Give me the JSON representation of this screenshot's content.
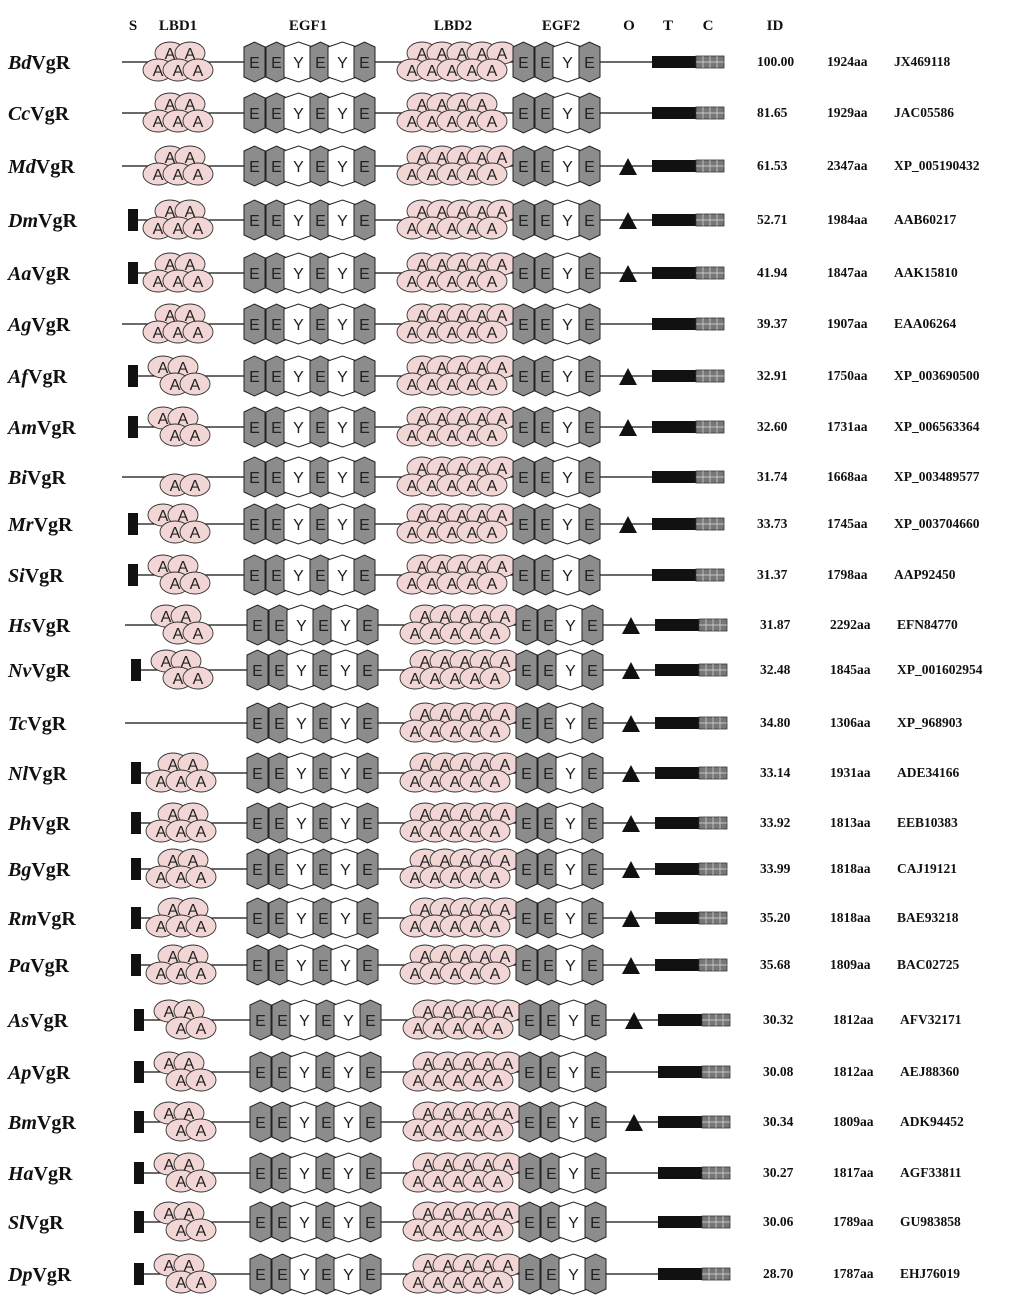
{
  "header": {
    "S": "S",
    "LBD1": "LBD1",
    "EGF1": "EGF1",
    "LBD2": "LBD2",
    "EGF2": "EGF2",
    "O": "O",
    "T": "T",
    "C": "C",
    "ID": "ID"
  },
  "colors": {
    "ldl_fill": "#f2d6d6",
    "egf_fill": "#8c8c8c",
    "y_fill": "#ffffff",
    "line": "#111111"
  },
  "rows": [
    {
      "abbr": "Bd",
      "suffix": "VgR",
      "id": "100.00",
      "len": "1924aa",
      "acc": "JX469118",
      "signal": false,
      "lbd1": [
        2,
        3
      ],
      "lbd2": [
        5,
        5
      ],
      "egf1": "EEYEYE",
      "egf2": "EEYE",
      "o_linked": false
    },
    {
      "abbr": "Cc",
      "suffix": "VgR",
      "id": "81.65",
      "len": "1929aa",
      "acc": "JAC05586",
      "signal": false,
      "lbd1": [
        2,
        3
      ],
      "lbd2": [
        4,
        5
      ],
      "egf1": "EEYEYE",
      "egf2": "EEYE",
      "o_linked": false
    },
    {
      "abbr": "Md",
      "suffix": "VgR",
      "id": "61.53",
      "len": "2347aa",
      "acc": "XP_005190432",
      "signal": false,
      "lbd1": [
        2,
        3
      ],
      "lbd2": [
        5,
        5
      ],
      "egf1": "EEYEYE",
      "egf2": "EEYE",
      "o_linked": true
    },
    {
      "abbr": "Dm",
      "suffix": "VgR",
      "id": "52.71",
      "len": "1984aa",
      "acc": "AAB60217",
      "signal": true,
      "lbd1": [
        2,
        3
      ],
      "lbd2": [
        5,
        5
      ],
      "egf1": "EEYEYE",
      "egf2": "EEYE",
      "o_linked": true
    },
    {
      "abbr": "Aa",
      "suffix": "VgR",
      "id": "41.94",
      "len": "1847aa",
      "acc": "AAK15810",
      "signal": true,
      "lbd1": [
        2,
        3
      ],
      "lbd2": [
        5,
        5
      ],
      "egf1": "EEYEYE",
      "egf2": "EEYE",
      "o_linked": true
    },
    {
      "abbr": "Ag",
      "suffix": "VgR",
      "id": "39.37",
      "len": "1907aa",
      "acc": "EAA06264",
      "signal": false,
      "lbd1": [
        2,
        3
      ],
      "lbd2": [
        5,
        5
      ],
      "egf1": "EEYEYE",
      "egf2": "EEYE",
      "o_linked": false
    },
    {
      "abbr": "Af",
      "suffix": "VgR",
      "id": "32.91",
      "len": "1750aa",
      "acc": "XP_003690500",
      "signal": true,
      "lbd1": [
        2,
        2
      ],
      "lbd2": [
        5,
        5
      ],
      "egf1": "EEYEYE",
      "egf2": "EEYE",
      "o_linked": true
    },
    {
      "abbr": "Am",
      "suffix": "VgR",
      "id": "32.60",
      "len": "1731aa",
      "acc": "XP_006563364",
      "signal": true,
      "lbd1": [
        2,
        2
      ],
      "lbd2": [
        5,
        5
      ],
      "egf1": "EEYEYE",
      "egf2": "EEYE",
      "o_linked": true
    },
    {
      "abbr": "Bi",
      "suffix": "VgR",
      "id": "31.74",
      "len": "1668aa",
      "acc": "XP_003489577",
      "signal": false,
      "lbd1": [
        0,
        2
      ],
      "lbd2": [
        5,
        5
      ],
      "egf1": "EEYEYE",
      "egf2": "EEYE",
      "o_linked": false
    },
    {
      "abbr": "Mr",
      "suffix": "VgR",
      "id": "33.73",
      "len": "1745aa",
      "acc": "XP_003704660",
      "signal": true,
      "lbd1": [
        2,
        2
      ],
      "lbd2": [
        5,
        5
      ],
      "egf1": "EEYEYE",
      "egf2": "EEYE",
      "o_linked": true
    },
    {
      "abbr": "Si",
      "suffix": "VgR",
      "id": "31.37",
      "len": "1798aa",
      "acc": "AAP92450",
      "signal": true,
      "lbd1": [
        2,
        2
      ],
      "lbd2": [
        5,
        5
      ],
      "egf1": "EEYEYE",
      "egf2": "EEYE",
      "o_linked": false
    },
    {
      "abbr": "Hs",
      "suffix": "VgR",
      "id": "31.87",
      "len": "2292aa",
      "acc": "EFN84770",
      "signal": false,
      "lbd1": [
        2,
        2
      ],
      "lbd2": [
        5,
        5
      ],
      "egf1": "EEYEYE",
      "egf2": "EEYE",
      "o_linked": true
    },
    {
      "abbr": "Nv",
      "suffix": "VgR",
      "id": "32.48",
      "len": "1845aa",
      "acc": "XP_001602954",
      "signal": true,
      "lbd1": [
        2,
        2
      ],
      "lbd2": [
        5,
        5
      ],
      "egf1": "EEYEYE",
      "egf2": "EEYE",
      "o_linked": true
    },
    {
      "abbr": "Tc",
      "suffix": "VgR",
      "id": "34.80",
      "len": "1306aa",
      "acc": "XP_968903",
      "signal": false,
      "lbd1": [
        0,
        0
      ],
      "lbd2": [
        5,
        5
      ],
      "egf1": "EEYEYE",
      "egf2": "EEYE",
      "o_linked": true
    },
    {
      "abbr": "Nl",
      "suffix": "VgR",
      "id": "33.14",
      "len": "1931aa",
      "acc": "ADE34166",
      "signal": true,
      "lbd1": [
        2,
        3
      ],
      "lbd2": [
        5,
        5
      ],
      "egf1": "EEYEYE",
      "egf2": "EEYE",
      "o_linked": true
    },
    {
      "abbr": "Ph",
      "suffix": "VgR",
      "id": "33.92",
      "len": "1813aa",
      "acc": "EEB10383",
      "signal": true,
      "lbd1": [
        2,
        3
      ],
      "lbd2": [
        5,
        5
      ],
      "egf1": "EEYEYE",
      "egf2": "EEYE",
      "o_linked": true
    },
    {
      "abbr": "Bg",
      "suffix": "VgR",
      "id": "33.99",
      "len": "1818aa",
      "acc": "CAJ19121",
      "signal": true,
      "lbd1": [
        2,
        3
      ],
      "lbd2": [
        5,
        5
      ],
      "egf1": "EEYEYE",
      "egf2": "EEYE",
      "o_linked": true
    },
    {
      "abbr": "Rm",
      "suffix": "VgR",
      "id": "35.20",
      "len": "1818aa",
      "acc": "BAE93218",
      "signal": true,
      "lbd1": [
        2,
        3
      ],
      "lbd2": [
        5,
        5
      ],
      "egf1": "EEYEYE",
      "egf2": "EEYE",
      "o_linked": true
    },
    {
      "abbr": "Pa",
      "suffix": "VgR",
      "id": "35.68",
      "len": "1809aa",
      "acc": "BAC02725",
      "signal": true,
      "lbd1": [
        2,
        3
      ],
      "lbd2": [
        5,
        5
      ],
      "egf1": "EEYEYE",
      "egf2": "EEYE",
      "o_linked": true
    },
    {
      "abbr": "As",
      "suffix": "VgR",
      "id": "30.32",
      "len": "1812aa",
      "acc": "AFV32171",
      "signal": true,
      "lbd1": [
        2,
        2
      ],
      "lbd2": [
        5,
        5
      ],
      "egf1": "EEYEYE",
      "egf2": "EEYE",
      "o_linked": true
    },
    {
      "abbr": "Ap",
      "suffix": "VgR",
      "id": "30.08",
      "len": "1812aa",
      "acc": "AEJ88360",
      "signal": true,
      "lbd1": [
        2,
        2
      ],
      "lbd2": [
        5,
        5
      ],
      "egf1": "EEYEYE",
      "egf2": "EEYE",
      "o_linked": false
    },
    {
      "abbr": "Bm",
      "suffix": "VgR",
      "id": "30.34",
      "len": "1809aa",
      "acc": "ADK94452",
      "signal": true,
      "lbd1": [
        2,
        2
      ],
      "lbd2": [
        5,
        5
      ],
      "egf1": "EEYEYE",
      "egf2": "EEYE",
      "o_linked": true
    },
    {
      "abbr": "Ha",
      "suffix": "VgR",
      "id": "30.27",
      "len": "1817aa",
      "acc": "AGF33811",
      "signal": true,
      "lbd1": [
        2,
        2
      ],
      "lbd2": [
        5,
        5
      ],
      "egf1": "EEYEYE",
      "egf2": "EEYE",
      "o_linked": false
    },
    {
      "abbr": "Sl",
      "suffix": "VgR",
      "id": "30.06",
      "len": "1789aa",
      "acc": "GU983858",
      "signal": true,
      "lbd1": [
        2,
        2
      ],
      "lbd2": [
        5,
        5
      ],
      "egf1": "EEYEYE",
      "egf2": "EEYE",
      "o_linked": false
    },
    {
      "abbr": "Dp",
      "suffix": "VgR",
      "id": "28.70",
      "len": "1787aa",
      "acc": "EHJ76019",
      "signal": true,
      "lbd1": [
        2,
        2
      ],
      "lbd2": [
        5,
        5
      ],
      "egf1": "EEYEYE",
      "egf2": "EEYE",
      "o_linked": false
    }
  ]
}
